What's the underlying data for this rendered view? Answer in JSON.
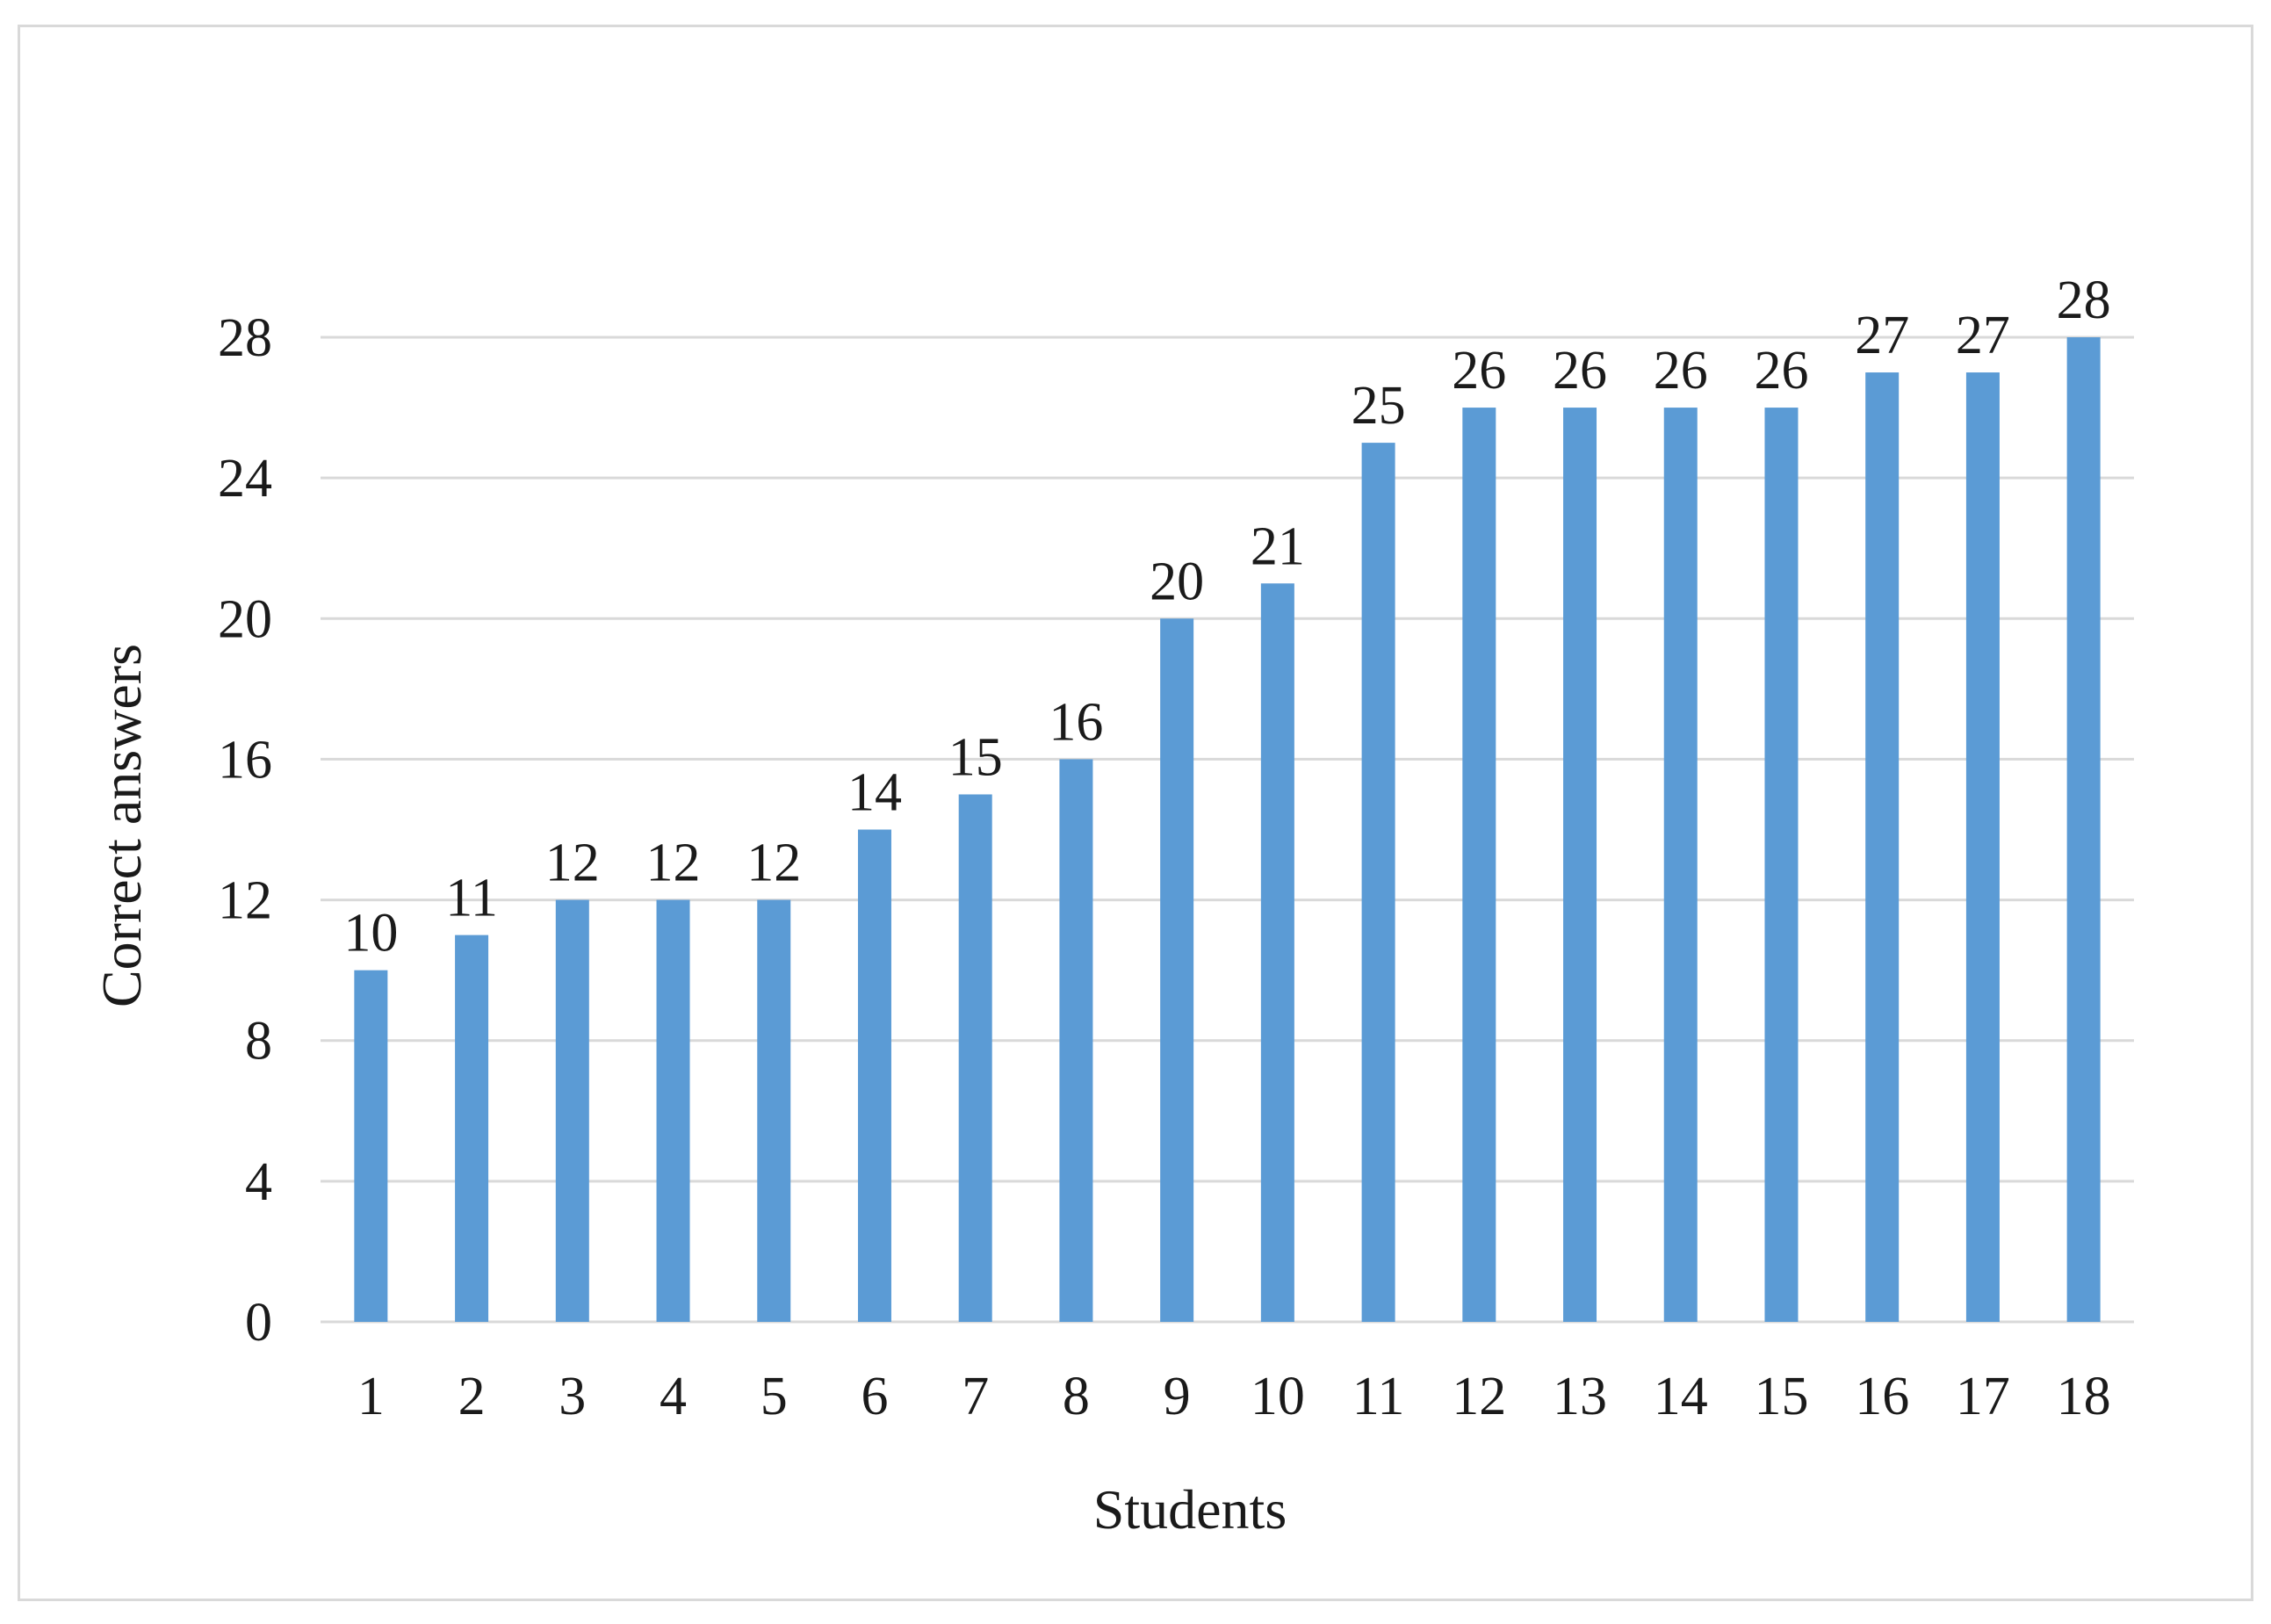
{
  "chart_data": {
    "type": "bar",
    "title": "",
    "xlabel": "Students",
    "ylabel": "Correct answers",
    "categories": [
      "1",
      "2",
      "3",
      "4",
      "5",
      "6",
      "7",
      "8",
      "9",
      "10",
      "11",
      "12",
      "13",
      "14",
      "15",
      "16",
      "17",
      "18"
    ],
    "values": [
      10,
      11,
      12,
      12,
      12,
      14,
      15,
      16,
      20,
      21,
      25,
      26,
      26,
      26,
      26,
      27,
      27,
      28
    ],
    "ylim": [
      0,
      28
    ],
    "yticks": [
      0,
      4,
      8,
      12,
      16,
      20,
      24,
      28
    ],
    "grid": true,
    "legend": "none",
    "data_labels": true,
    "bar_color": "#5b9bd5",
    "grid_color": "#d9d9d9"
  }
}
